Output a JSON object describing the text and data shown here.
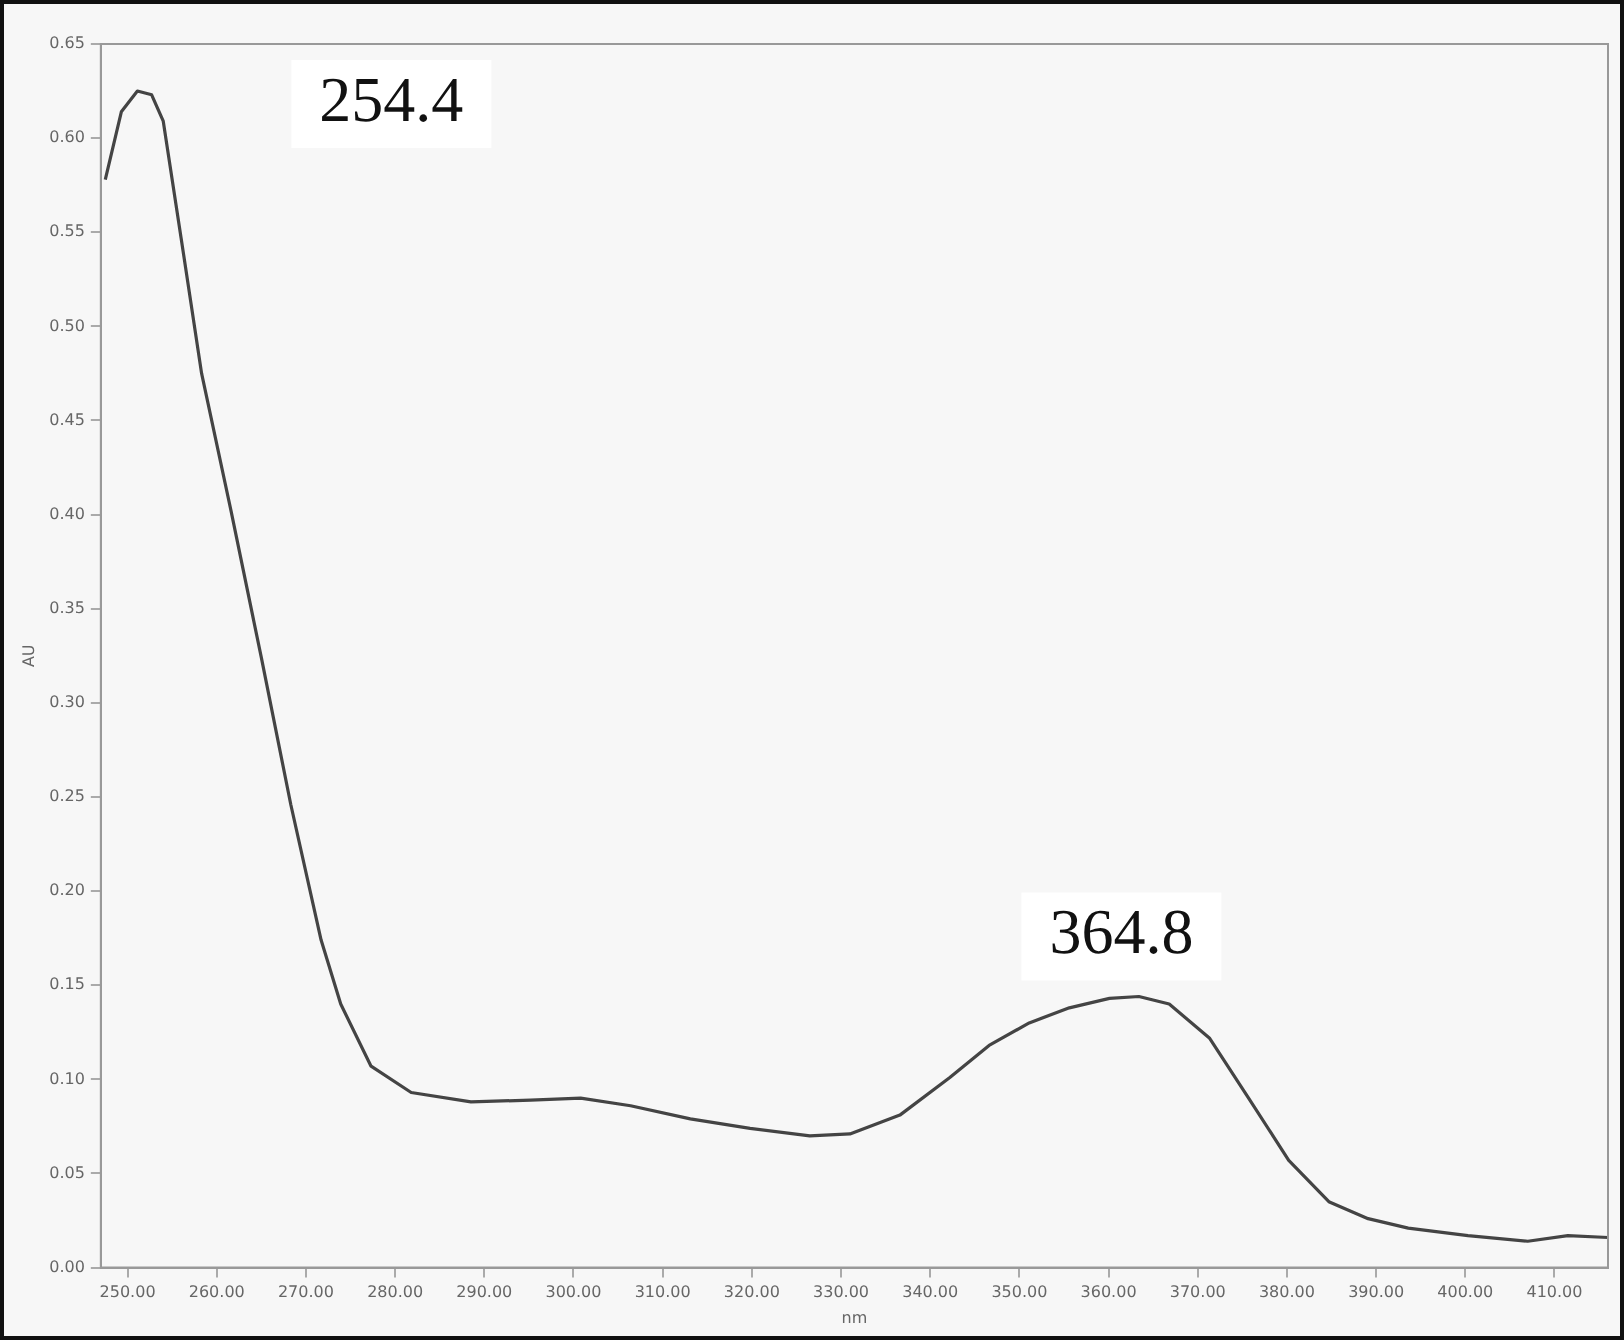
{
  "chart_data": {
    "type": "line",
    "xlabel": "nm",
    "ylabel": "AU",
    "xlim": [
      247,
      416
    ],
    "xticks": [
      {
        "value": 250,
        "label": "250.00"
      },
      {
        "value": 260,
        "label": "260.00"
      },
      {
        "value": 270,
        "label": "270.00"
      },
      {
        "value": 280,
        "label": "280.00"
      },
      {
        "value": 290,
        "label": "290.00"
      },
      {
        "value": 300,
        "label": "300.00"
      },
      {
        "value": 310,
        "label": "310.00"
      },
      {
        "value": 320,
        "label": "320.00"
      },
      {
        "value": 330,
        "label": "330.00"
      },
      {
        "value": 340,
        "label": "340.00"
      },
      {
        "value": 350,
        "label": "350.00"
      },
      {
        "value": 360,
        "label": "360.00"
      },
      {
        "value": 370,
        "label": "370.00"
      },
      {
        "value": 380,
        "label": "380.00"
      },
      {
        "value": 390,
        "label": "390.00"
      },
      {
        "value": 400,
        "label": "400.00"
      },
      {
        "value": 410,
        "label": "410.00"
      }
    ],
    "ylim": [
      0,
      0.65
    ],
    "yticks": [
      {
        "value": 0,
        "label": "0.00"
      },
      {
        "value": 0.05,
        "label": "0.05"
      },
      {
        "value": 0.1,
        "label": "0.10"
      },
      {
        "value": 0.15,
        "label": "0.15"
      },
      {
        "value": 0.2,
        "label": "0.20"
      },
      {
        "value": 0.25,
        "label": "0.25"
      },
      {
        "value": 0.3,
        "label": "0.30"
      },
      {
        "value": 0.35,
        "label": "0.35"
      },
      {
        "value": 0.4,
        "label": "0.40"
      },
      {
        "value": 0.45,
        "label": "0.45"
      },
      {
        "value": 0.5,
        "label": "0.50"
      },
      {
        "value": 0.55,
        "label": "0.55"
      },
      {
        "value": 0.6,
        "label": "0.60"
      },
      {
        "value": 0.65,
        "label": "0.65"
      }
    ],
    "grid": false,
    "legend": false,
    "marker": "none",
    "line_style": "solid",
    "annotations": [
      "254.4",
      {
        "text": "364.8",
        "x": 364.8,
        "y": 0.144
      }
    ],
    "series": [
      {
        "color": "#444444",
        "x": [
          247.5,
          249.3,
          251.1,
          252.7,
          254,
          256,
          258.3,
          261.6,
          265,
          268.3,
          271.7,
          273.9,
          277.3,
          281.8,
          288.5,
          295.2,
          300.8,
          306.4,
          313.1,
          319.8,
          326.5,
          331,
          336.6,
          342.2,
          346.6,
          351.1,
          355.6,
          360.1,
          363.4,
          366.8,
          371.3,
          375.7,
          380.2,
          384.7,
          389.1,
          393.6,
          400.3,
          407,
          411.5,
          416
        ],
        "values": [
          0.578,
          0.614,
          0.625,
          0.623,
          0.609,
          0.547,
          0.475,
          0.402,
          0.324,
          0.246,
          0.174,
          0.14,
          0.107,
          0.093,
          0.088,
          0.089,
          0.09,
          0.086,
          0.079,
          0.074,
          0.07,
          0.071,
          0.081,
          0.101,
          0.118,
          0.13,
          0.138,
          0.143,
          0.144,
          0.14,
          0.122,
          0.09,
          0.057,
          0.035,
          0.026,
          0.021,
          0.017,
          0.014,
          0.017,
          0.016
        ]
      }
    ]
  }
}
